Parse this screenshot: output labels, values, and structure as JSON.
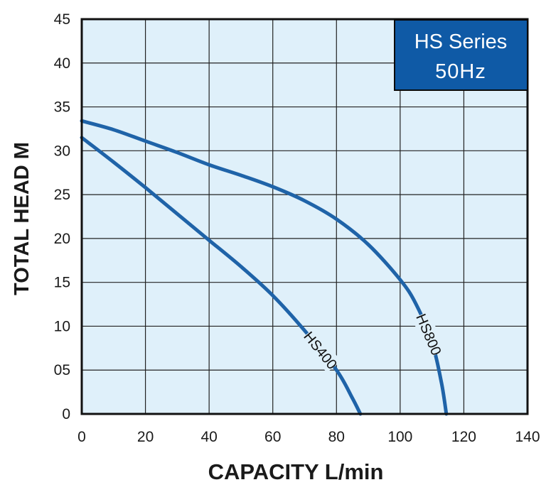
{
  "chart_data": {
    "type": "line",
    "xlabel": "CAPACITY L/min",
    "ylabel": "TOTAL HEAD M",
    "xlim": [
      0,
      140
    ],
    "ylim": [
      0,
      45
    ],
    "x_ticks": [
      "0",
      "20",
      "40",
      "60",
      "80",
      "100",
      "120",
      "140"
    ],
    "y_ticks": [
      "0",
      "05",
      "10",
      "15",
      "20",
      "25",
      "30",
      "35",
      "40",
      "45"
    ],
    "grid": true,
    "info_box": {
      "line1": "HS Series",
      "line2": "50Hz",
      "position": "top-right"
    },
    "colors": {
      "curve": "#1f63a8",
      "plot_bg": "#dff0fa",
      "box_bg": "#0f5aa6",
      "frame": "#111111",
      "grid": "#222222"
    },
    "series": [
      {
        "name": "HS400",
        "x": [
          0,
          10,
          20,
          30,
          40,
          50,
          60,
          70,
          80,
          85,
          87.5
        ],
        "y": [
          31.5,
          28.7,
          25.8,
          22.8,
          19.8,
          16.8,
          13.5,
          9.5,
          5,
          1.8,
          0
        ]
      },
      {
        "name": "HS800",
        "x": [
          0,
          10,
          20,
          30,
          40,
          50,
          60,
          70,
          80,
          90,
          100,
          105,
          110,
          113,
          114.5
        ],
        "y": [
          33.4,
          32.4,
          31.1,
          29.8,
          28.4,
          27.2,
          25.9,
          24.3,
          22.2,
          19.3,
          15.3,
          12.5,
          8.2,
          3.5,
          0
        ]
      }
    ]
  }
}
